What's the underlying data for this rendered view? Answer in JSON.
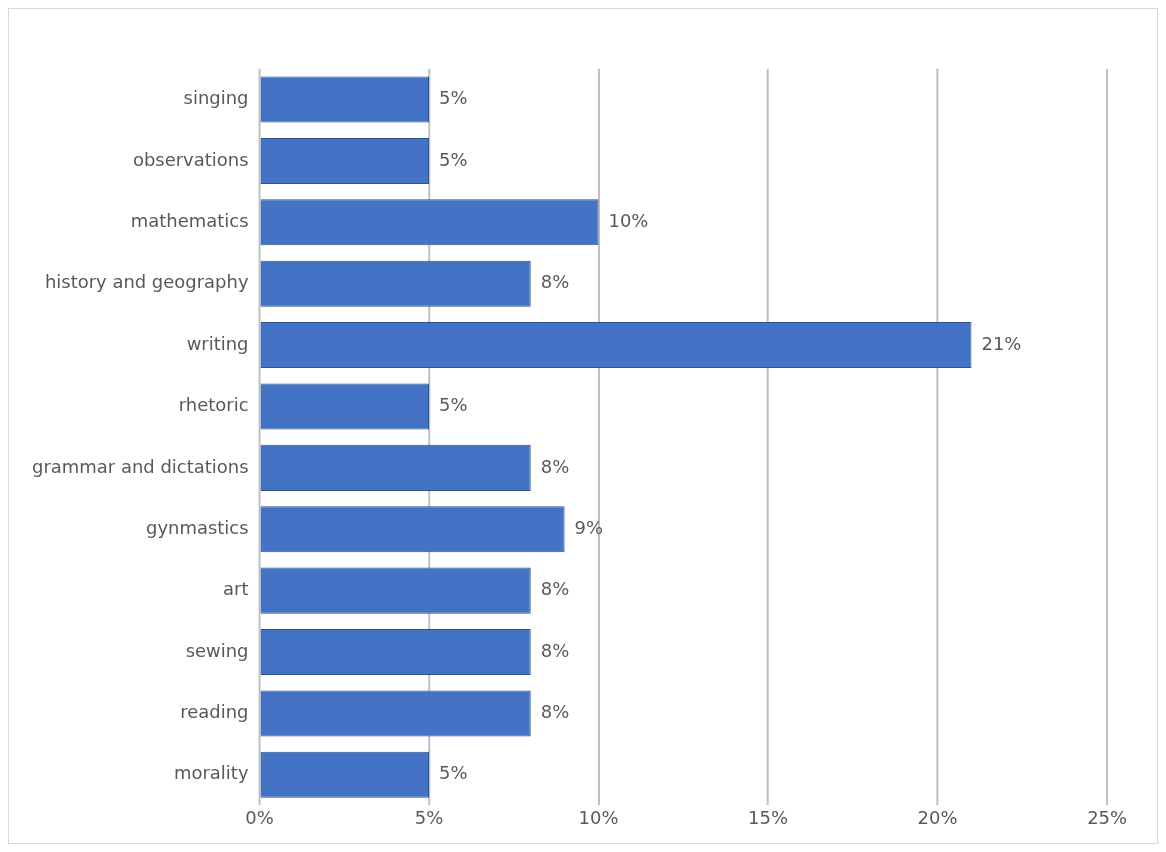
{
  "chart_data": {
    "type": "bar",
    "orientation": "horizontal",
    "categories": [
      "singing",
      "observations",
      "mathematics",
      "history and geography",
      "writing",
      "rhetoric",
      "grammar and dictations",
      "gynmastics",
      "art",
      "sewing",
      "reading",
      "morality"
    ],
    "values": [
      5,
      5,
      10,
      8,
      21,
      5,
      8,
      9,
      8,
      8,
      8,
      5
    ],
    "value_labels": [
      "5%",
      "5%",
      "10%",
      "8%",
      "21%",
      "5%",
      "8%",
      "9%",
      "8%",
      "8%",
      "8%",
      "5%"
    ],
    "color": "#4472c4",
    "xlim": [
      0,
      25
    ],
    "xticks": [
      {
        "value": 0,
        "label": "0%"
      },
      {
        "value": 5,
        "label": "5%"
      },
      {
        "value": 10,
        "label": "10%"
      },
      {
        "value": 15,
        "label": "15%"
      },
      {
        "value": 20,
        "label": "20%"
      },
      {
        "value": 25,
        "label": "25%"
      }
    ],
    "grid": "x",
    "legend": false
  }
}
